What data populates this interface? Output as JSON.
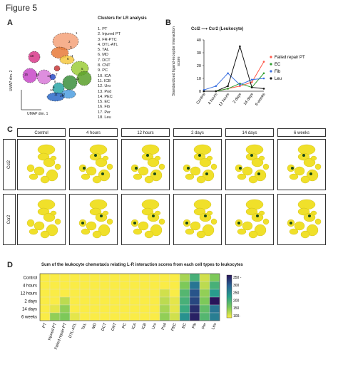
{
  "figure_title": "Figure 5",
  "panel_labels": {
    "a": "A",
    "b": "B",
    "c": "C",
    "d": "D"
  },
  "panel_a": {
    "clusters_title": "Clusters for LR analysis",
    "clusters": [
      "1. PT",
      "2. Injured PT",
      "3. FR-PTC",
      "4. DTL-ATL",
      "5. TAL",
      "6. MD",
      "7. DCT",
      "8. CNT",
      "9. PC",
      "10. ICA",
      "11. ICB",
      "12. Uro",
      "13. Pod",
      "14. PEC",
      "15. EC",
      "16. Fib",
      "17. Per",
      "18. Leu"
    ],
    "umap_x_label": "UMAP dim. 1",
    "umap_y_label": "UMAP dim. 2",
    "umap_numbers": [
      "1",
      "2",
      "3",
      "4",
      "5",
      "6",
      "7",
      "8",
      "9",
      "10",
      "11",
      "12",
      "13",
      "14",
      "15",
      "16",
      "17",
      "18"
    ]
  },
  "panel_b": {
    "title_ligand": "Ccl2",
    "title_receptor": "Ccr2 (Leukocyte)",
    "ylabel": "Standardized ligand-receptor interaction score"
  },
  "panel_c": {
    "conditions": [
      "Control",
      "4 hours",
      "12 hours",
      "2 days",
      "14 days",
      "6 weeks"
    ],
    "rows": [
      "Ccl2",
      "Ccr2"
    ]
  },
  "panel_d": {
    "title": "Sum of the leukocyte chemotaxis relating L-R interaction scores from each cell types to leukocytes"
  },
  "colors": {
    "failed_repair_pt": "#ff5a4a",
    "ec": "#2e9e2e",
    "fib": "#3a6fe0",
    "leu": "#111111"
  },
  "chart_data": [
    {
      "type": "line",
      "x": [
        "Control",
        "4 hours",
        "12 hours",
        "2 days",
        "14 days",
        "6 weeks"
      ],
      "ylim": [
        0,
        40
      ],
      "yticks": [
        0,
        10,
        20,
        30,
        40
      ],
      "legend_position": "right",
      "series": [
        {
          "name": "Failed repair PT",
          "color": "#ff5a4a",
          "values": [
            0,
            0,
            2,
            4,
            7,
            23
          ]
        },
        {
          "name": "EC",
          "color": "#2e9e2e",
          "values": [
            0,
            0,
            2,
            6,
            3,
            14
          ]
        },
        {
          "name": "Fib",
          "color": "#3a6fe0",
          "values": [
            1,
            4,
            14,
            5,
            9,
            10
          ]
        },
        {
          "name": "Leu",
          "color": "#111111",
          "values": [
            0,
            0,
            4,
            35,
            3,
            2
          ]
        }
      ]
    },
    {
      "type": "heatmap",
      "rows": [
        "Control",
        "4 hours",
        "12 hours",
        "2 days",
        "14 days",
        "6 weeks"
      ],
      "columns": [
        "PT",
        "Injured PT",
        "Failed repair PT",
        "DTL-ATL",
        "TAL",
        "MD",
        "DCT",
        "CNT",
        "PC",
        "ICA",
        "ICB",
        "Uro",
        "Pod",
        "PEC",
        "EC",
        "Fib",
        "Per",
        "Leu"
      ],
      "values": [
        [
          100,
          100,
          100,
          100,
          100,
          100,
          100,
          100,
          100,
          100,
          100,
          100,
          100,
          100,
          140,
          200,
          120,
          160
        ],
        [
          100,
          100,
          100,
          100,
          100,
          100,
          100,
          100,
          100,
          100,
          100,
          100,
          100,
          100,
          160,
          270,
          130,
          200
        ],
        [
          100,
          100,
          100,
          100,
          100,
          100,
          100,
          100,
          100,
          100,
          100,
          100,
          120,
          100,
          190,
          300,
          150,
          230
        ],
        [
          100,
          100,
          130,
          100,
          100,
          100,
          100,
          100,
          100,
          100,
          100,
          100,
          130,
          110,
          200,
          310,
          160,
          350
        ],
        [
          100,
          110,
          150,
          100,
          100,
          100,
          100,
          100,
          100,
          100,
          100,
          100,
          140,
          110,
          210,
          330,
          180,
          270
        ],
        [
          100,
          150,
          160,
          110,
          100,
          100,
          100,
          100,
          100,
          100,
          100,
          100,
          150,
          120,
          240,
          340,
          190,
          260
        ]
      ],
      "colorbar_ticks": [
        "350 -",
        "300",
        "250",
        "200",
        "150",
        "100-"
      ],
      "vmin": 100,
      "vmax": 350
    }
  ]
}
